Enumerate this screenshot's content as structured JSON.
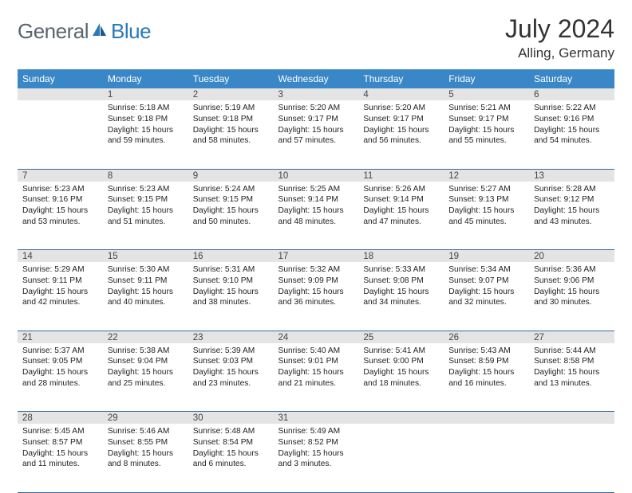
{
  "logo": {
    "text1": "General",
    "text2": "Blue"
  },
  "title": "July 2024",
  "location": "Alling, Germany",
  "colors": {
    "header_bg": "#3a87c7",
    "header_text": "#ffffff",
    "daynum_bg": "#e4e4e4",
    "row_divider": "#3a6a9a",
    "logo_gray": "#5a6570",
    "logo_blue": "#2a7ab8"
  },
  "weekdays": [
    "Sunday",
    "Monday",
    "Tuesday",
    "Wednesday",
    "Thursday",
    "Friday",
    "Saturday"
  ],
  "weeks": [
    {
      "nums": [
        "",
        "1",
        "2",
        "3",
        "4",
        "5",
        "6"
      ],
      "cells": [
        null,
        {
          "sunrise": "5:18 AM",
          "sunset": "9:18 PM",
          "daylight": "15 hours and 59 minutes."
        },
        {
          "sunrise": "5:19 AM",
          "sunset": "9:18 PM",
          "daylight": "15 hours and 58 minutes."
        },
        {
          "sunrise": "5:20 AM",
          "sunset": "9:17 PM",
          "daylight": "15 hours and 57 minutes."
        },
        {
          "sunrise": "5:20 AM",
          "sunset": "9:17 PM",
          "daylight": "15 hours and 56 minutes."
        },
        {
          "sunrise": "5:21 AM",
          "sunset": "9:17 PM",
          "daylight": "15 hours and 55 minutes."
        },
        {
          "sunrise": "5:22 AM",
          "sunset": "9:16 PM",
          "daylight": "15 hours and 54 minutes."
        }
      ]
    },
    {
      "nums": [
        "7",
        "8",
        "9",
        "10",
        "11",
        "12",
        "13"
      ],
      "cells": [
        {
          "sunrise": "5:23 AM",
          "sunset": "9:16 PM",
          "daylight": "15 hours and 53 minutes."
        },
        {
          "sunrise": "5:23 AM",
          "sunset": "9:15 PM",
          "daylight": "15 hours and 51 minutes."
        },
        {
          "sunrise": "5:24 AM",
          "sunset": "9:15 PM",
          "daylight": "15 hours and 50 minutes."
        },
        {
          "sunrise": "5:25 AM",
          "sunset": "9:14 PM",
          "daylight": "15 hours and 48 minutes."
        },
        {
          "sunrise": "5:26 AM",
          "sunset": "9:14 PM",
          "daylight": "15 hours and 47 minutes."
        },
        {
          "sunrise": "5:27 AM",
          "sunset": "9:13 PM",
          "daylight": "15 hours and 45 minutes."
        },
        {
          "sunrise": "5:28 AM",
          "sunset": "9:12 PM",
          "daylight": "15 hours and 43 minutes."
        }
      ]
    },
    {
      "nums": [
        "14",
        "15",
        "16",
        "17",
        "18",
        "19",
        "20"
      ],
      "cells": [
        {
          "sunrise": "5:29 AM",
          "sunset": "9:11 PM",
          "daylight": "15 hours and 42 minutes."
        },
        {
          "sunrise": "5:30 AM",
          "sunset": "9:11 PM",
          "daylight": "15 hours and 40 minutes."
        },
        {
          "sunrise": "5:31 AM",
          "sunset": "9:10 PM",
          "daylight": "15 hours and 38 minutes."
        },
        {
          "sunrise": "5:32 AM",
          "sunset": "9:09 PM",
          "daylight": "15 hours and 36 minutes."
        },
        {
          "sunrise": "5:33 AM",
          "sunset": "9:08 PM",
          "daylight": "15 hours and 34 minutes."
        },
        {
          "sunrise": "5:34 AM",
          "sunset": "9:07 PM",
          "daylight": "15 hours and 32 minutes."
        },
        {
          "sunrise": "5:36 AM",
          "sunset": "9:06 PM",
          "daylight": "15 hours and 30 minutes."
        }
      ]
    },
    {
      "nums": [
        "21",
        "22",
        "23",
        "24",
        "25",
        "26",
        "27"
      ],
      "cells": [
        {
          "sunrise": "5:37 AM",
          "sunset": "9:05 PM",
          "daylight": "15 hours and 28 minutes."
        },
        {
          "sunrise": "5:38 AM",
          "sunset": "9:04 PM",
          "daylight": "15 hours and 25 minutes."
        },
        {
          "sunrise": "5:39 AM",
          "sunset": "9:03 PM",
          "daylight": "15 hours and 23 minutes."
        },
        {
          "sunrise": "5:40 AM",
          "sunset": "9:01 PM",
          "daylight": "15 hours and 21 minutes."
        },
        {
          "sunrise": "5:41 AM",
          "sunset": "9:00 PM",
          "daylight": "15 hours and 18 minutes."
        },
        {
          "sunrise": "5:43 AM",
          "sunset": "8:59 PM",
          "daylight": "15 hours and 16 minutes."
        },
        {
          "sunrise": "5:44 AM",
          "sunset": "8:58 PM",
          "daylight": "15 hours and 13 minutes."
        }
      ]
    },
    {
      "nums": [
        "28",
        "29",
        "30",
        "31",
        "",
        "",
        ""
      ],
      "cells": [
        {
          "sunrise": "5:45 AM",
          "sunset": "8:57 PM",
          "daylight": "15 hours and 11 minutes."
        },
        {
          "sunrise": "5:46 AM",
          "sunset": "8:55 PM",
          "daylight": "15 hours and 8 minutes."
        },
        {
          "sunrise": "5:48 AM",
          "sunset": "8:54 PM",
          "daylight": "15 hours and 6 minutes."
        },
        {
          "sunrise": "5:49 AM",
          "sunset": "8:52 PM",
          "daylight": "15 hours and 3 minutes."
        },
        null,
        null,
        null
      ]
    }
  ],
  "labels": {
    "sunrise": "Sunrise:",
    "sunset": "Sunset:",
    "daylight": "Daylight:"
  }
}
